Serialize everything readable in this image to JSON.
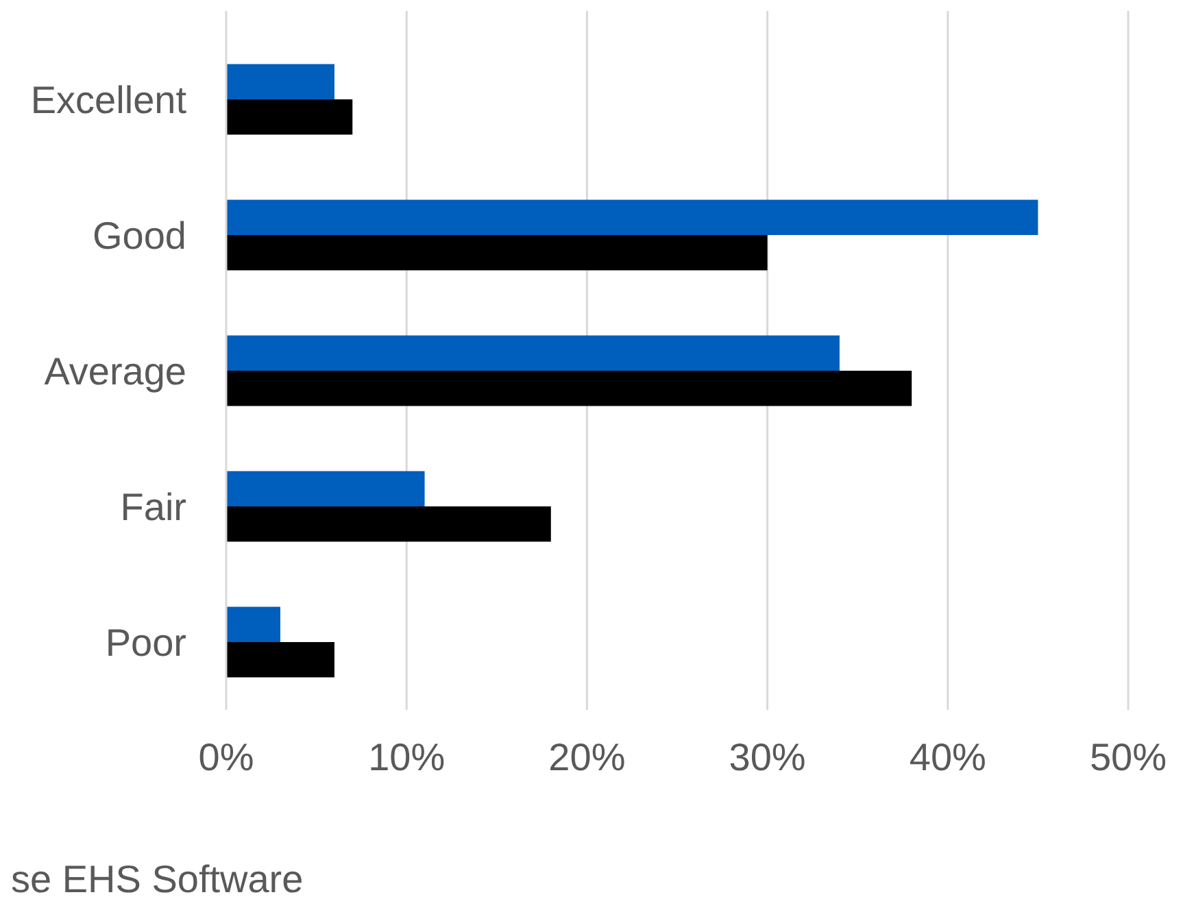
{
  "chart_data": {
    "type": "bar",
    "orientation": "horizontal",
    "categories": [
      "Excellent",
      "Good",
      "Average",
      "Fair",
      "Poor"
    ],
    "series": [
      {
        "color": "#005ebd",
        "values": [
          6,
          45,
          34,
          11,
          3
        ]
      },
      {
        "color": "#000000",
        "values": [
          7,
          30,
          38,
          18,
          6
        ]
      }
    ],
    "xlim": [
      0,
      50
    ],
    "xticks": [
      {
        "value": 0,
        "label": "0%"
      },
      {
        "value": 10,
        "label": "10%"
      },
      {
        "value": 20,
        "label": "20%"
      },
      {
        "value": 30,
        "label": "30%"
      },
      {
        "value": 40,
        "label": "40%"
      },
      {
        "value": 50,
        "label": "50%"
      }
    ],
    "grid": "x",
    "annotations": [
      "se EHS Software"
    ]
  }
}
